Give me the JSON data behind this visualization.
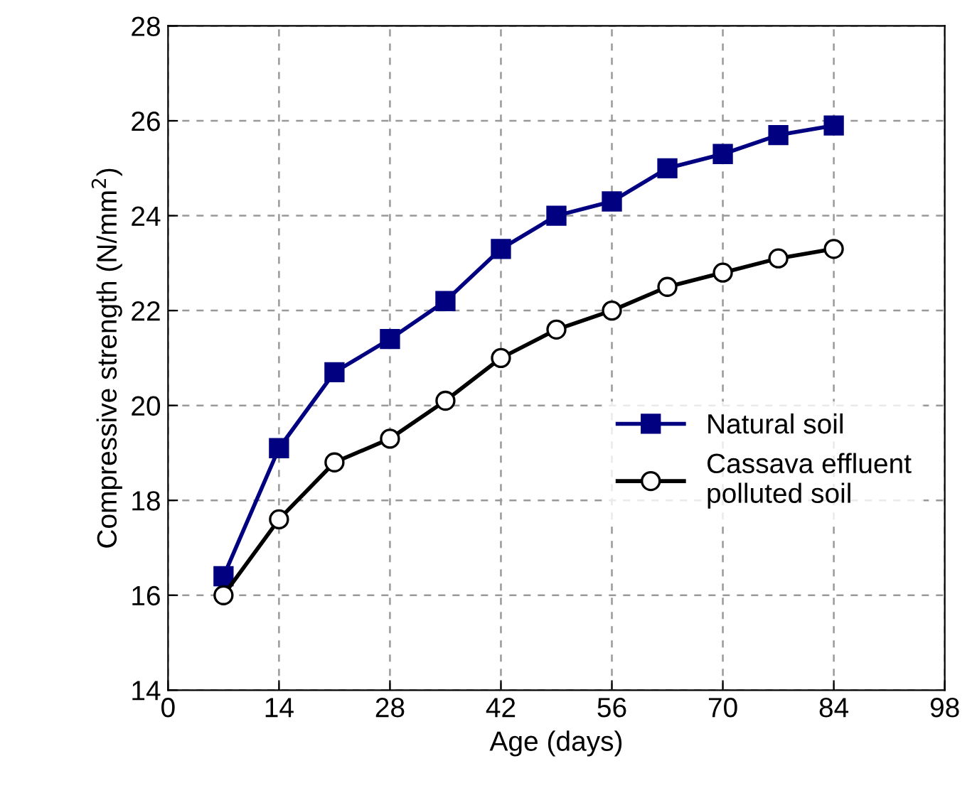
{
  "chart_data": {
    "type": "line",
    "xlabel": "Age (days)",
    "ylabel": "Compressive strength (N/mm$^{2}$)",
    "x": [
      7,
      14,
      21,
      28,
      35,
      42,
      49,
      56,
      63,
      70,
      77,
      84
    ],
    "series": [
      {
        "name": "Natural soil",
        "color": "#000080",
        "marker": "square",
        "values": [
          16.4,
          19.1,
          20.7,
          21.4,
          22.2,
          23.3,
          24.0,
          24.3,
          25.0,
          25.3,
          25.7,
          25.9
        ]
      },
      {
        "name": "Cassava effluent\npolluted soil",
        "color": "#000000",
        "marker": "circle",
        "values": [
          16.0,
          17.6,
          18.8,
          19.3,
          20.1,
          21.0,
          21.6,
          22.0,
          22.5,
          22.8,
          23.1,
          23.3
        ]
      }
    ],
    "xlim": [
      0,
      98
    ],
    "xticks": [
      0,
      14,
      28,
      42,
      56,
      70,
      84,
      98
    ],
    "ylim": [
      14,
      28
    ],
    "yticks": [
      14,
      16,
      18,
      20,
      22,
      24,
      26,
      28
    ],
    "grid": true,
    "legend": "center right",
    "line_style": "solid"
  }
}
